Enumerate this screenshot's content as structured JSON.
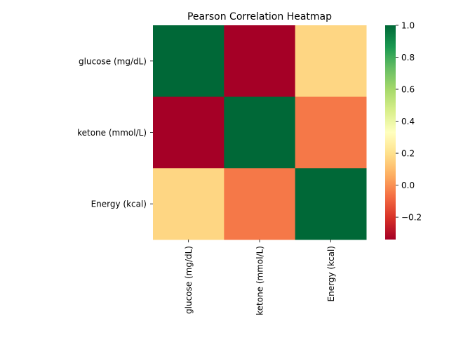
{
  "chart_data": {
    "type": "heatmap",
    "title": "Pearson Correlation Heatmap",
    "xlabel": "",
    "ylabel": "",
    "row_labels": [
      "glucose (mg/dL)",
      "ketone (mmol/L)",
      "Energy (kcal)"
    ],
    "col_labels": [
      "glucose (mg/dL)",
      "ketone (mmol/L)",
      "Energy (kcal)"
    ],
    "matrix": [
      [
        1.0,
        -0.34,
        0.17
      ],
      [
        -0.34,
        1.0,
        -0.05
      ],
      [
        0.17,
        -0.05,
        1.0
      ]
    ],
    "colormap": "RdYlGn",
    "vmin": -0.34,
    "vmax": 1.0,
    "colorbar": {
      "ticks": [
        -0.2,
        0.0,
        0.2,
        0.4,
        0.6,
        0.8,
        1.0
      ],
      "tick_labels": [
        "−0.2",
        "0.0",
        "0.2",
        "0.4",
        "0.6",
        "0.8",
        "1.0"
      ],
      "placement": "right"
    },
    "grid": false
  }
}
